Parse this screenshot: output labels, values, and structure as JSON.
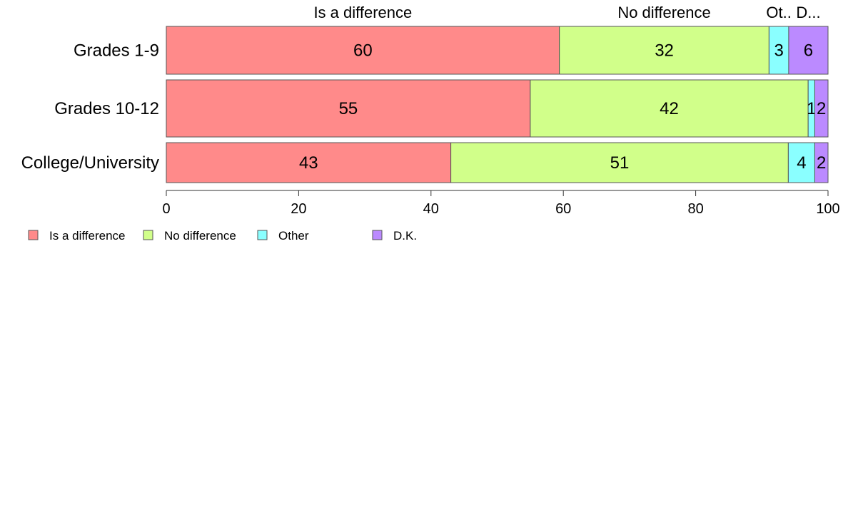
{
  "chart_data": {
    "type": "bar",
    "orientation": "horizontal",
    "stacked": true,
    "categories": [
      "Grades 1-9",
      "Grades 10-12",
      "College/University"
    ],
    "series": [
      {
        "name": "Is a difference",
        "values": [
          60,
          55,
          43
        ],
        "color": "#ff8a8a"
      },
      {
        "name": "No difference",
        "values": [
          32,
          42,
          51
        ],
        "color": "#d1ff8a"
      },
      {
        "name": "Other",
        "values": [
          3,
          1,
          4
        ],
        "color": "#8affff"
      },
      {
        "name": "D.K.",
        "values": [
          6,
          2,
          2
        ],
        "color": "#bb8aff"
      }
    ],
    "bar_labels": [
      [
        "60",
        "32",
        "3",
        "6"
      ],
      [
        "55",
        "42",
        "1",
        "2"
      ],
      [
        "43",
        "51",
        "4",
        "2"
      ]
    ],
    "top_labels": [
      "Is a difference",
      "No difference",
      "Ot..",
      "D..."
    ],
    "xlim": [
      0,
      100
    ],
    "xticks": [
      0,
      20,
      40,
      60,
      80,
      100
    ],
    "xlabel": "",
    "ylabel": "",
    "grid": false,
    "legend_position": "bottom-left"
  }
}
